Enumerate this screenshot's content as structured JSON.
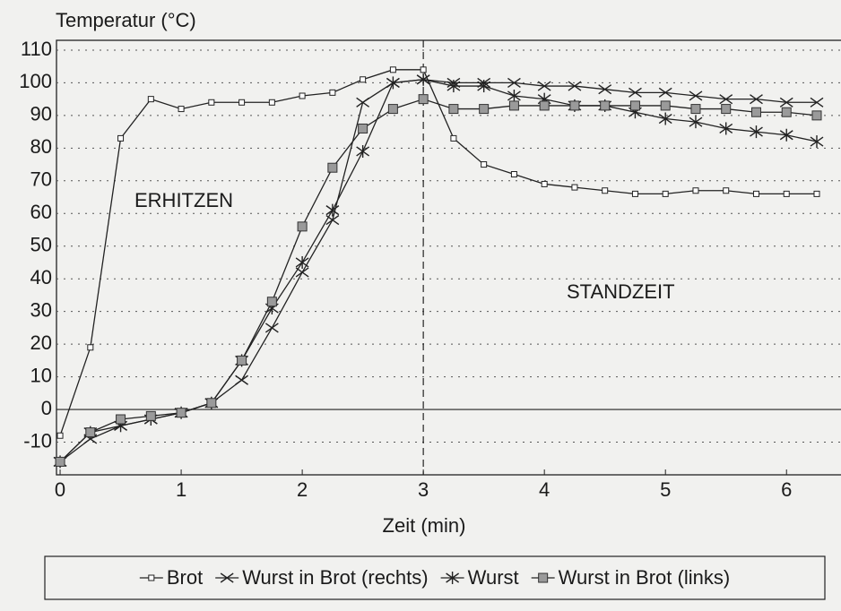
{
  "chart_data": {
    "type": "line",
    "y_axis_label": "Temperatur (°C)",
    "x_axis_label": "Zeit (min)",
    "annotations": [
      "ERHITZEN",
      "STANDZEIT"
    ],
    "vline_x": 3,
    "x": [
      0,
      0.25,
      0.5,
      0.75,
      1,
      1.25,
      1.5,
      1.75,
      2,
      2.25,
      2.5,
      2.75,
      3,
      3.25,
      3.5,
      3.75,
      4,
      4.25,
      4.5,
      4.75,
      5,
      5.25,
      5.5,
      5.75,
      6,
      6.25
    ],
    "series": [
      {
        "name": "Brot",
        "color": "#222222",
        "marker": "open-square",
        "values": [
          -8,
          19,
          83,
          95,
          92,
          94,
          94,
          94,
          96,
          97,
          101,
          104,
          104,
          83,
          75,
          72,
          69,
          68,
          67,
          66,
          66,
          67,
          67,
          66,
          66,
          66
        ]
      },
      {
        "name": "Wurst in Brot (rechts)",
        "color": "#222222",
        "marker": "cross",
        "values": [
          -16,
          -9,
          -5,
          -3,
          -1,
          2,
          9,
          25,
          42,
          58,
          94,
          100,
          101,
          100,
          100,
          100,
          99,
          99,
          98,
          97,
          97,
          96,
          95,
          95,
          94,
          94
        ]
      },
      {
        "name": "Wurst",
        "color": "#222222",
        "marker": "asterisk",
        "values": [
          -16,
          -7,
          -5,
          -3,
          -1,
          2,
          15,
          31,
          45,
          61,
          79,
          100,
          101,
          99,
          99,
          96,
          95,
          93,
          93,
          91,
          89,
          88,
          86,
          85,
          84,
          82
        ]
      },
      {
        "name": "Wurst in Brot (links)",
        "color": "#222222",
        "marker": "gray-square",
        "values": [
          -16,
          -7,
          -3,
          -2,
          -1,
          2,
          15,
          33,
          56,
          74,
          86,
          92,
          95,
          92,
          92,
          93,
          93,
          93,
          93,
          93,
          93,
          92,
          92,
          91,
          91,
          90
        ]
      }
    ],
    "xlim": [
      -0.03,
      6.45
    ],
    "xticks": [
      0,
      1,
      2,
      3,
      4,
      5,
      6
    ],
    "ylim": [
      -20,
      113
    ],
    "yticks": [
      -10,
      0,
      10,
      20,
      30,
      40,
      50,
      60,
      70,
      80,
      90,
      100,
      110
    ],
    "grid": true
  }
}
